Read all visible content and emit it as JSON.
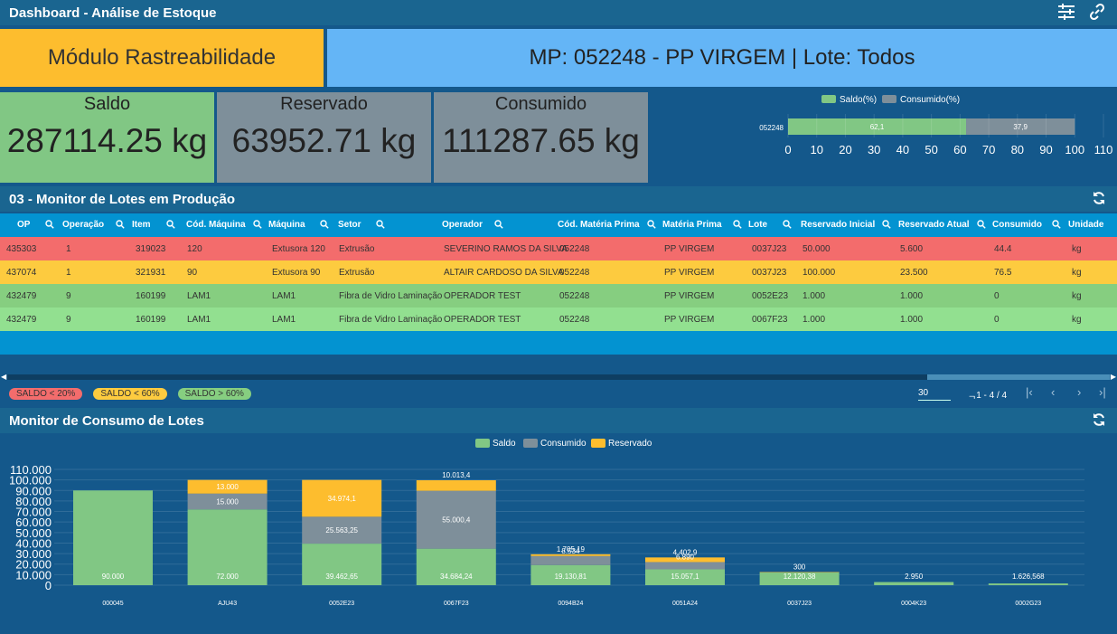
{
  "header": {
    "title": "Dashboard - Análise de Estoque",
    "icons": [
      "settings-sliders-icon",
      "link-icon"
    ]
  },
  "module": {
    "label": "Módulo Rastreabilidade"
  },
  "mp": {
    "label": "MP: 052248 - PP VIRGEM | Lote: Todos"
  },
  "kpis": {
    "saldo": {
      "label": "Saldo",
      "value": "287114.25 kg",
      "color": "#81c784"
    },
    "reservado": {
      "label": "Reservado",
      "value": "63952.71 kg",
      "color": "#7e8f9a"
    },
    "consumido": {
      "label": "Consumido",
      "value": "111287.65 kg",
      "color": "#7e8f9a"
    }
  },
  "pct_chart": {
    "legend": [
      "Saldo(%)",
      "Consumido(%)"
    ],
    "category": "052248",
    "saldo": 62.1,
    "consumido": 37.9,
    "saldo_label": "62,1",
    "consumido_label": "37,9",
    "ticks": [
      "0",
      "10",
      "20",
      "30",
      "40",
      "50",
      "60",
      "70",
      "80",
      "90",
      "100",
      "110"
    ],
    "colors": {
      "saldo": "#81c784",
      "consumido": "#7e8f9a"
    }
  },
  "monitor": {
    "title": "03 - Monitor de Lotes em Produção",
    "columns": [
      "OP",
      "Operação",
      "Item",
      "Cód. Máquina",
      "Máquina",
      "Setor",
      "Operador",
      "Cód. Matéria Prima",
      "Matéria Prima",
      "Lote",
      "Reservado Inicial",
      "Reservado Atual",
      "Consumido",
      "Unidade"
    ],
    "rows": [
      {
        "status": "red",
        "cells": [
          "435303",
          "1",
          "319023",
          "120",
          "Extusora 120",
          "Extrusão",
          "SEVERINO RAMOS DA SILVA",
          "052248",
          "PP VIRGEM",
          "0037J23",
          "50.000",
          "5.600",
          "44.4",
          "kg"
        ]
      },
      {
        "status": "yellow",
        "cells": [
          "437074",
          "1",
          "321931",
          "90",
          "Extusora 90",
          "Extrusão",
          "ALTAIR CARDOSO DA SILVA",
          "052248",
          "PP VIRGEM",
          "0037J23",
          "100.000",
          "23.500",
          "76.5",
          "kg"
        ]
      },
      {
        "status": "green",
        "cells": [
          "432479",
          "9",
          "160199",
          "LAM1",
          "LAM1",
          "Fibra de Vidro Laminação",
          "OPERADOR TEST",
          "052248",
          "PP VIRGEM",
          "0052E23",
          "1.000",
          "1.000",
          "0",
          "kg"
        ]
      },
      {
        "status": "lightgreen",
        "cells": [
          "432479",
          "9",
          "160199",
          "LAM1",
          "LAM1",
          "Fibra de Vidro Laminação",
          "OPERADOR TEST",
          "052248",
          "PP VIRGEM",
          "0067F23",
          "1.000",
          "1.000",
          "0",
          "kg"
        ]
      }
    ],
    "legend": {
      "red": "SALDO < 20%",
      "yellow": "SALDO < 60%",
      "green": "SALDO > 60%"
    },
    "pager": {
      "page_size": "30",
      "range": "1 - 4 / 4"
    }
  },
  "consumo": {
    "title": "Monitor de Consumo de Lotes",
    "legend": [
      "Saldo",
      "Consumido",
      "Reservado"
    ]
  },
  "chart_data": {
    "type": "bar",
    "stacked": true,
    "categories": [
      "000045",
      "AJU43",
      "0052E23",
      "0067F23",
      "0094B24",
      "0051A24",
      "0037J23",
      "0004K23",
      "0002G23"
    ],
    "series": [
      {
        "name": "Saldo",
        "color": "#81c784",
        "values": [
          90000,
          72000,
          39462.65,
          34684.24,
          19130.81,
          15057.1,
          12120.38,
          2950,
          1626.568
        ],
        "labels": [
          "90.000",
          "72.000",
          "39.462,65",
          "34.684,24",
          "19.130,81",
          "15.057,1",
          "12.120,38",
          "2.950",
          "1.626,568"
        ]
      },
      {
        "name": "Consumido",
        "color": "#7e8f9a",
        "values": [
          0,
          15000,
          25563.25,
          55000.4,
          8534,
          6890,
          0,
          0,
          0
        ],
        "labels": [
          "",
          "15.000",
          "25.563,25",
          "55.000,4",
          "8.534",
          "6.890",
          "",
          "",
          ""
        ]
      },
      {
        "name": "Reservado",
        "color": "#fdbd2e",
        "values": [
          0,
          13000,
          34974.1,
          10013.4,
          1705.19,
          4402.9,
          300,
          0,
          0
        ],
        "labels": [
          "",
          "13.000",
          "34.974,1",
          "10.013,4",
          "1.705,19",
          "4.402,9",
          "300",
          "",
          ""
        ]
      }
    ],
    "ylim": [
      0,
      110000
    ],
    "yticks": [
      "0",
      "10.000",
      "20.000",
      "30.000",
      "40.000",
      "50.000",
      "60.000",
      "70.000",
      "80.000",
      "90.000",
      "100.000",
      "110.000"
    ],
    "legend_position": "top"
  }
}
